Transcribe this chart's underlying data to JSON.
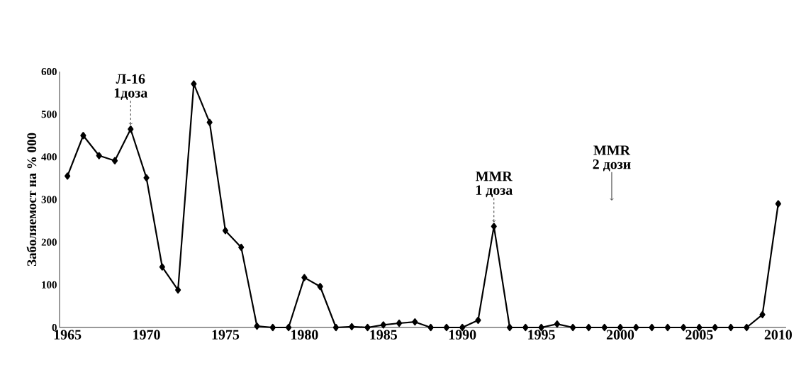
{
  "chart_data": {
    "type": "line",
    "ylabel": "Заболяемост на % 000",
    "x": [
      1965,
      1966,
      1967,
      1968,
      1969,
      1970,
      1971,
      1972,
      1973,
      1974,
      1975,
      1976,
      1977,
      1978,
      1979,
      1980,
      1981,
      1982,
      1983,
      1984,
      1985,
      1986,
      1987,
      1988,
      1989,
      1990,
      1991,
      1992,
      1993,
      1994,
      1995,
      1996,
      1997,
      1998,
      1999,
      2000,
      2001,
      2002,
      2003,
      2004,
      2005,
      2006,
      2007,
      2008,
      2009,
      2010
    ],
    "series": [
      {
        "color": "#000000",
        "values": [
          355,
          450,
          403,
          391,
          465,
          351,
          142,
          88,
          571,
          481,
          227,
          188,
          3,
          0,
          0,
          117,
          96,
          0,
          2,
          0,
          6,
          10,
          13,
          0,
          0,
          0,
          17,
          237,
          0,
          0,
          0,
          8,
          0,
          0,
          0,
          0,
          0,
          0,
          0,
          0,
          0,
          0,
          0,
          0,
          30,
          290
        ]
      }
    ],
    "xlim": [
      1964.5,
      2010.5
    ],
    "ylim": [
      0,
      600
    ],
    "xticks": [
      1965,
      1970,
      1975,
      1980,
      1985,
      1990,
      1995,
      2000,
      2005,
      2010
    ],
    "yticks": [
      0,
      100,
      200,
      300,
      400,
      500,
      600
    ],
    "marker": "diamond",
    "line_style": "solid",
    "grid": false,
    "annotations": [
      {
        "text": "1доза",
        "x": 1969,
        "y": 465
      },
      "Л-16",
      {
        "text": "1 доза",
        "x": 1992,
        "y": 237
      },
      "MMR",
      "2 дози",
      "MMR"
    ]
  }
}
